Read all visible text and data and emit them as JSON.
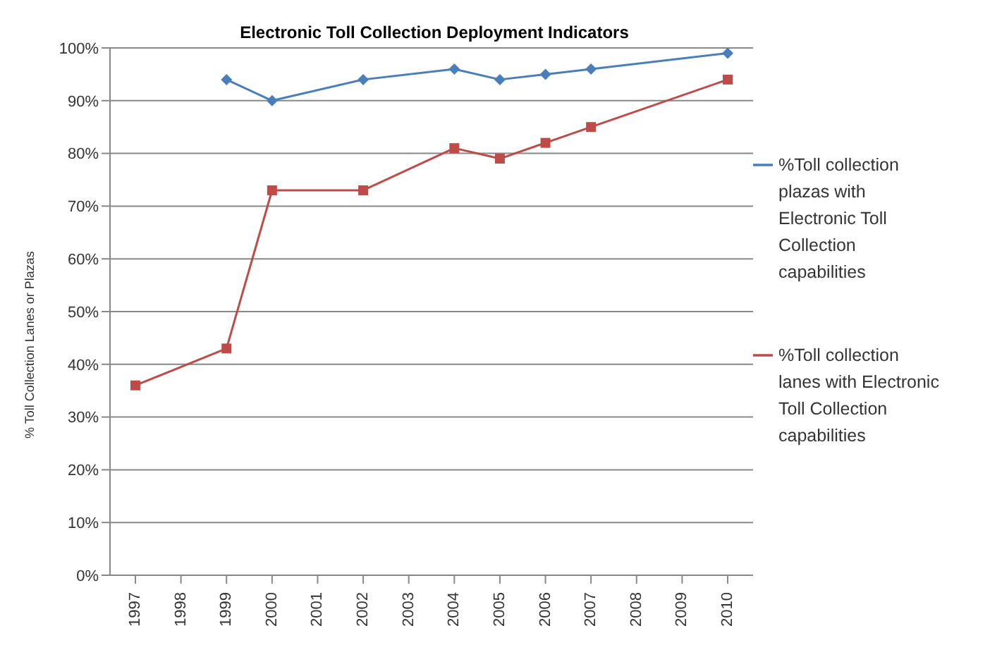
{
  "chart_data": {
    "type": "line",
    "title": "Electronic Toll Collection Deployment Indicators",
    "ylabel": "% Toll Collection Lanes or Plazas",
    "categories": [
      "1997",
      "1998",
      "1999",
      "2000",
      "2001",
      "2002",
      "2003",
      "2004",
      "2005",
      "2006",
      "2007",
      "2008",
      "2009",
      "2010"
    ],
    "series": [
      {
        "name": "%Toll collection plazas with Electronic Toll Collection capabilities",
        "color": "#4a7ebb",
        "marker": "diamond",
        "values": [
          null,
          null,
          94,
          90,
          null,
          94,
          null,
          96,
          94,
          95,
          96,
          null,
          null,
          99
        ]
      },
      {
        "name": "%Toll collection lanes with Electronic Toll Collection capabilities",
        "color": "#be4b48",
        "marker": "square",
        "values": [
          36,
          null,
          43,
          73,
          null,
          73,
          null,
          81,
          79,
          82,
          85,
          null,
          null,
          94
        ]
      }
    ],
    "ylim": [
      0,
      100
    ],
    "yticks": [
      {
        "value": 0,
        "label": "0%"
      },
      {
        "value": 10,
        "label": "10%"
      },
      {
        "value": 20,
        "label": "20%"
      },
      {
        "value": 30,
        "label": "30%"
      },
      {
        "value": 40,
        "label": "40%"
      },
      {
        "value": 50,
        "label": "50%"
      },
      {
        "value": 60,
        "label": "60%"
      },
      {
        "value": 70,
        "label": "70%"
      },
      {
        "value": 80,
        "label": "80%"
      },
      {
        "value": 90,
        "label": "90%"
      },
      {
        "value": 100,
        "label": "100%"
      }
    ],
    "grid": "y",
    "legend": "right",
    "line_style": "solid"
  }
}
